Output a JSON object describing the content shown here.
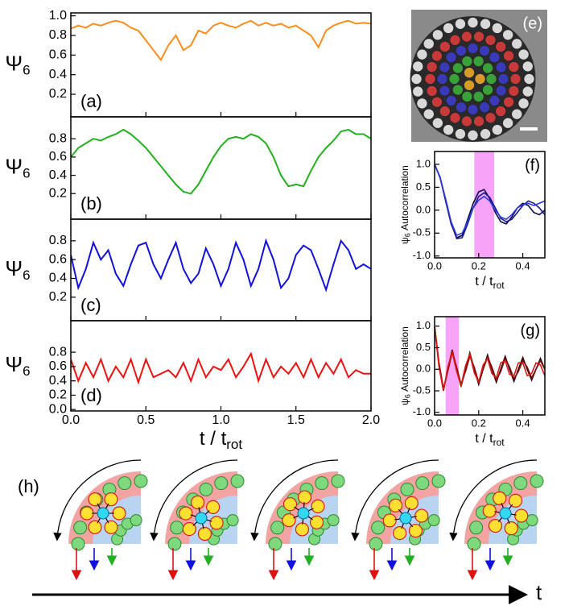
{
  "chart_data": [
    {
      "type": "line",
      "panel_label": "(a)",
      "y_label": "Ψ",
      "y_label_sub": "6",
      "x": [
        0,
        0.05,
        0.1,
        0.15,
        0.2,
        0.25,
        0.3,
        0.35,
        0.4,
        0.45,
        0.5,
        0.55,
        0.6,
        0.65,
        0.7,
        0.75,
        0.8,
        0.85,
        0.9,
        0.95,
        1,
        1.05,
        1.1,
        1.15,
        1.2,
        1.25,
        1.3,
        1.35,
        1.4,
        1.45,
        1.5,
        1.55,
        1.6,
        1.65,
        1.7,
        1.75,
        1.8,
        1.85,
        1.9,
        1.95,
        2
      ],
      "series": [
        {
          "color": "#ff8c1a",
          "values": [
            0.87,
            0.9,
            0.88,
            0.92,
            0.9,
            0.93,
            0.95,
            0.93,
            0.88,
            0.85,
            0.75,
            0.65,
            0.55,
            0.7,
            0.8,
            0.65,
            0.7,
            0.85,
            0.82,
            0.9,
            0.93,
            0.9,
            0.88,
            0.92,
            0.95,
            0.9,
            0.93,
            0.9,
            0.92,
            0.88,
            0.9,
            0.85,
            0.8,
            0.68,
            0.85,
            0.9,
            0.93,
            0.95,
            0.92,
            0.93,
            0.92
          ]
        }
      ],
      "xlim": [
        0,
        2
      ],
      "xticks": [
        0,
        0.5,
        1,
        1.5,
        2
      ],
      "ylim": [
        -0.03,
        1.03
      ],
      "yticks": [
        0.2,
        0.4,
        0.6,
        0.8,
        {
          "value": 1,
          "label": "1.0"
        }
      ]
    },
    {
      "type": "line",
      "panel_label": "(b)",
      "y_label": "Ψ",
      "y_label_sub": "6",
      "x": [
        0,
        0.05,
        0.1,
        0.15,
        0.2,
        0.25,
        0.3,
        0.35,
        0.4,
        0.45,
        0.5,
        0.55,
        0.6,
        0.65,
        0.7,
        0.75,
        0.8,
        0.85,
        0.9,
        0.95,
        1,
        1.05,
        1.1,
        1.15,
        1.2,
        1.25,
        1.3,
        1.35,
        1.4,
        1.45,
        1.5,
        1.55,
        1.6,
        1.65,
        1.7,
        1.75,
        1.8,
        1.85,
        1.9,
        1.95,
        2
      ],
      "series": [
        {
          "color": "#22b01e",
          "values": [
            0.6,
            0.7,
            0.75,
            0.8,
            0.78,
            0.82,
            0.85,
            0.9,
            0.85,
            0.78,
            0.7,
            0.6,
            0.5,
            0.4,
            0.3,
            0.22,
            0.2,
            0.3,
            0.45,
            0.6,
            0.72,
            0.8,
            0.82,
            0.8,
            0.85,
            0.82,
            0.75,
            0.6,
            0.4,
            0.28,
            0.3,
            0.28,
            0.45,
            0.6,
            0.7,
            0.78,
            0.88,
            0.9,
            0.85,
            0.85,
            0.8
          ]
        }
      ],
      "xlim": [
        0,
        2
      ],
      "xticks": [
        0,
        0.5,
        1,
        1.5,
        2
      ],
      "ylim": [
        -0.08,
        1.04
      ],
      "yticks": [
        0.2,
        0.4,
        0.6,
        0.8
      ]
    },
    {
      "type": "line",
      "panel_label": "(c)",
      "y_label": "Ψ",
      "y_label_sub": "6",
      "x": [
        0,
        0.05,
        0.1,
        0.15,
        0.2,
        0.25,
        0.3,
        0.35,
        0.4,
        0.45,
        0.5,
        0.55,
        0.6,
        0.65,
        0.7,
        0.75,
        0.8,
        0.85,
        0.9,
        0.95,
        1,
        1.05,
        1.1,
        1.15,
        1.2,
        1.25,
        1.3,
        1.35,
        1.4,
        1.45,
        1.5,
        1.55,
        1.6,
        1.65,
        1.7,
        1.75,
        1.8,
        1.85,
        1.9,
        1.95,
        2
      ],
      "series": [
        {
          "color": "#1010e0",
          "values": [
            0.65,
            0.3,
            0.5,
            0.78,
            0.6,
            0.7,
            0.45,
            0.32,
            0.55,
            0.75,
            0.78,
            0.55,
            0.4,
            0.6,
            0.78,
            0.5,
            0.35,
            0.45,
            0.72,
            0.55,
            0.32,
            0.5,
            0.78,
            0.6,
            0.32,
            0.5,
            0.8,
            0.6,
            0.3,
            0.4,
            0.65,
            0.75,
            0.7,
            0.5,
            0.28,
            0.55,
            0.8,
            0.7,
            0.5,
            0.55,
            0.5
          ]
        }
      ],
      "xlim": [
        0,
        2
      ],
      "xticks": [
        0,
        0.5,
        1,
        1.5,
        2
      ],
      "ylim": [
        -0.05,
        1.03
      ],
      "yticks": [
        0.2,
        0.4,
        0.6,
        0.8
      ]
    },
    {
      "type": "line",
      "panel_label": "(d)",
      "y_label": "Ψ",
      "y_label_sub": "6",
      "x_label": "t / t",
      "x_label_sub": "rot",
      "x": [
        0,
        0.05,
        0.1,
        0.15,
        0.2,
        0.25,
        0.3,
        0.35,
        0.4,
        0.45,
        0.5,
        0.55,
        0.6,
        0.65,
        0.7,
        0.75,
        0.8,
        0.85,
        0.9,
        0.95,
        1,
        1.05,
        1.1,
        1.15,
        1.2,
        1.25,
        1.3,
        1.35,
        1.4,
        1.45,
        1.5,
        1.55,
        1.6,
        1.65,
        1.7,
        1.75,
        1.8,
        1.85,
        1.9,
        1.95,
        2
      ],
      "series": [
        {
          "color": "#ee1111",
          "values": [
            0.7,
            0.4,
            0.65,
            0.45,
            0.7,
            0.4,
            0.6,
            0.45,
            0.7,
            0.38,
            0.7,
            0.45,
            0.5,
            0.55,
            0.45,
            0.65,
            0.4,
            0.7,
            0.45,
            0.6,
            0.55,
            0.7,
            0.45,
            0.6,
            0.78,
            0.4,
            0.7,
            0.45,
            0.6,
            0.5,
            0.65,
            0.45,
            0.7,
            0.45,
            0.65,
            0.5,
            0.7,
            0.45,
            0.55,
            0.5,
            0.5
          ]
        }
      ],
      "xlim": [
        0,
        2
      ],
      "xticks": [
        {
          "value": 0,
          "label": "0.0"
        },
        0.5,
        {
          "value": 1,
          "label": "1.0"
        },
        1.5,
        {
          "value": 2,
          "label": "2.0"
        }
      ],
      "ylim": [
        -0.02,
        1.24
      ],
      "yticks": [
        {
          "value": 0,
          "label": "0.0"
        },
        0.2,
        0.4,
        0.6,
        0.8
      ]
    },
    {
      "type": "image",
      "panel_label": "(e)"
    },
    {
      "type": "line",
      "panel_label": "(f)",
      "y_label": "ψ",
      "y_label_sub": "6",
      "y_label_suffix": " Autocorrelation",
      "x_label": "t / t",
      "x_label_sub": "rot",
      "highlight": [
        0.18,
        0.27
      ],
      "highlight_color": "#f7a3f7",
      "x": [
        0,
        0.025,
        0.05,
        0.075,
        0.1,
        0.125,
        0.15,
        0.175,
        0.2,
        0.225,
        0.25,
        0.275,
        0.3,
        0.325,
        0.35,
        0.375,
        0.4,
        0.425,
        0.45,
        0.475,
        0.5
      ],
      "series": [
        {
          "color": "#0a0a4a",
          "values": [
            1.0,
            0.7,
            0.2,
            -0.3,
            -0.6,
            -0.55,
            -0.2,
            0.15,
            0.4,
            0.45,
            0.25,
            -0.05,
            -0.25,
            -0.3,
            -0.15,
            0.05,
            0.15,
            0.1,
            -0.05,
            -0.1,
            0.0
          ]
        },
        {
          "color": "#1a1a8c",
          "values": [
            1.0,
            0.72,
            0.22,
            -0.28,
            -0.62,
            -0.6,
            -0.3,
            0.05,
            0.3,
            0.38,
            0.28,
            0.05,
            -0.18,
            -0.25,
            -0.2,
            -0.05,
            0.1,
            0.2,
            0.15,
            0.05,
            -0.1
          ]
        },
        {
          "color": "#2a3ae0",
          "values": [
            1.0,
            0.7,
            0.25,
            -0.25,
            -0.55,
            -0.5,
            -0.25,
            0.05,
            0.22,
            0.3,
            0.2,
            0.0,
            -0.15,
            -0.2,
            -0.1,
            0.05,
            0.12,
            0.15,
            0.1,
            0.15,
            0.2
          ]
        }
      ],
      "xlim": [
        0,
        0.5
      ],
      "xticks": [
        {
          "value": 0,
          "label": "0.0"
        },
        0.2,
        0.4
      ],
      "ylim": [
        -1.04,
        1.28
      ],
      "yticks": [
        {
          "value": 1,
          "label": "1.0"
        },
        0.5,
        {
          "value": 0,
          "label": "0.0"
        },
        -0.5,
        {
          "value": -1,
          "label": "-1.0"
        }
      ]
    },
    {
      "type": "line",
      "panel_label": "(g)",
      "y_label": "ψ",
      "y_label_sub": "6",
      "y_label_suffix": " Autocorrelation",
      "x_label": "t / t",
      "x_label_sub": "rot",
      "highlight": [
        0.05,
        0.11
      ],
      "highlight_color": "#f7a3f7",
      "x": [
        0,
        0.02,
        0.04,
        0.06,
        0.08,
        0.1,
        0.12,
        0.14,
        0.16,
        0.18,
        0.2,
        0.22,
        0.24,
        0.26,
        0.28,
        0.3,
        0.32,
        0.34,
        0.36,
        0.38,
        0.4,
        0.42,
        0.44,
        0.46,
        0.48,
        0.5
      ],
      "series": [
        {
          "color": "#2a0505",
          "values": [
            1.0,
            0.1,
            -0.5,
            0.0,
            0.45,
            0.0,
            -0.4,
            0.0,
            0.38,
            0.0,
            -0.35,
            0.0,
            0.33,
            0.0,
            -0.3,
            0.0,
            0.3,
            0.0,
            -0.28,
            0.0,
            0.27,
            0.0,
            -0.25,
            0.0,
            0.25,
            0.0
          ]
        },
        {
          "color": "#7a1010",
          "values": [
            1.0,
            0.15,
            -0.45,
            -0.05,
            0.4,
            0.05,
            -0.35,
            -0.05,
            0.3,
            0.05,
            -0.3,
            0.0,
            0.28,
            0.05,
            -0.25,
            -0.05,
            0.25,
            0.05,
            -0.22,
            -0.05,
            0.2,
            0.05,
            -0.2,
            0.0,
            0.2,
            0.0
          ]
        },
        {
          "color": "#e01515",
          "values": [
            1.0,
            0.05,
            -0.5,
            0.05,
            0.4,
            -0.05,
            -0.38,
            0.08,
            0.35,
            -0.08,
            -0.3,
            0.1,
            0.25,
            -0.1,
            -0.2,
            0.15,
            0.2,
            -0.12,
            -0.15,
            0.15,
            0.15,
            -0.15,
            -0.1,
            0.15,
            0.1,
            -0.15
          ]
        }
      ],
      "xlim": [
        0,
        0.5
      ],
      "xticks": [
        {
          "value": 0,
          "label": "0.0"
        },
        0.2,
        0.4
      ],
      "ylim": [
        -1.06,
        1.22
      ],
      "yticks": [
        {
          "value": 1,
          "label": "1.0"
        },
        0.5,
        {
          "value": 0,
          "label": "0.0"
        },
        -0.5,
        {
          "value": -1,
          "label": "-1.0"
        }
      ]
    }
  ],
  "diagram": {
    "panel_label": "(h)",
    "axis_label": "t"
  }
}
